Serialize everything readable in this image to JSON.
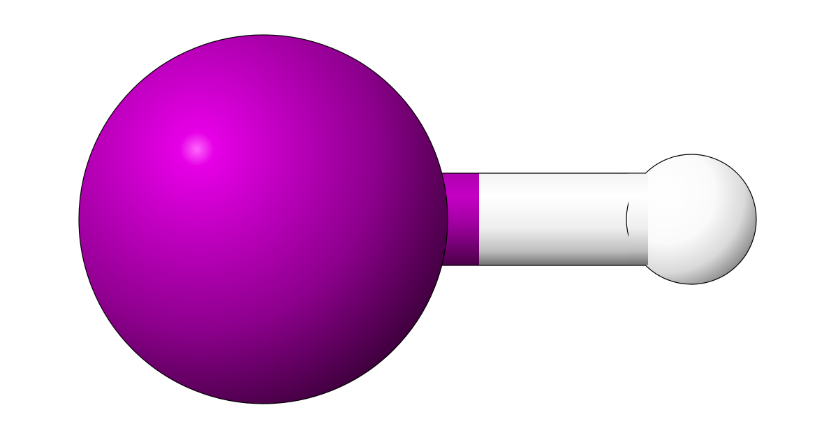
{
  "molecule": {
    "atoms": [
      {
        "element": "iodine",
        "color": "#b300b3"
      },
      {
        "element": "hydrogen",
        "color": "#ffffff"
      }
    ],
    "bond": {
      "order": 1,
      "colors": [
        "#b300b3",
        "#ffffff"
      ]
    }
  },
  "colors": {
    "background": "#ffffff",
    "iodine_highlight": "#ff66ff",
    "iodine_mid": "#a000a0",
    "iodine_shadow": "#3a0038",
    "hydrogen_highlight": "#ffffff",
    "hydrogen_shadow": "#6e6e6e",
    "outline": "#000000"
  }
}
